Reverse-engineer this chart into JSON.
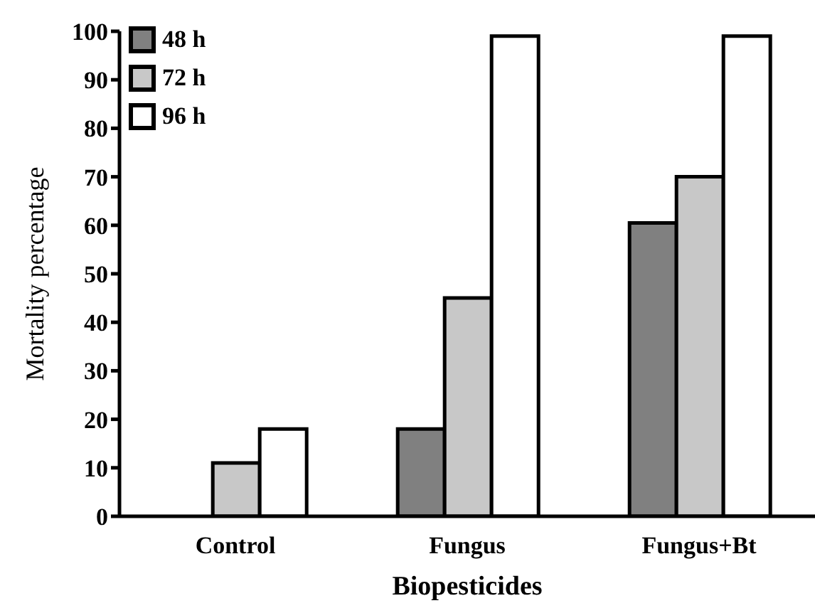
{
  "chart_data": {
    "type": "bar",
    "xlabel": "Biopesticides",
    "ylabel": "Mortality percentage",
    "categories": [
      "Control",
      "Fungus",
      "Fungus+Bt"
    ],
    "series": [
      {
        "name": "48 h",
        "color": "#808080",
        "values": [
          0,
          18,
          60.5
        ]
      },
      {
        "name": "72 h",
        "color": "#c8c8c8",
        "values": [
          11,
          45,
          70
        ]
      },
      {
        "name": "96 h",
        "color": "#ffffff",
        "values": [
          18,
          99,
          99
        ]
      }
    ],
    "ylim": [
      0,
      100
    ],
    "yticks": [
      0,
      10,
      20,
      30,
      40,
      50,
      60,
      70,
      80,
      90,
      100
    ],
    "grid": false,
    "legend": "top left"
  }
}
